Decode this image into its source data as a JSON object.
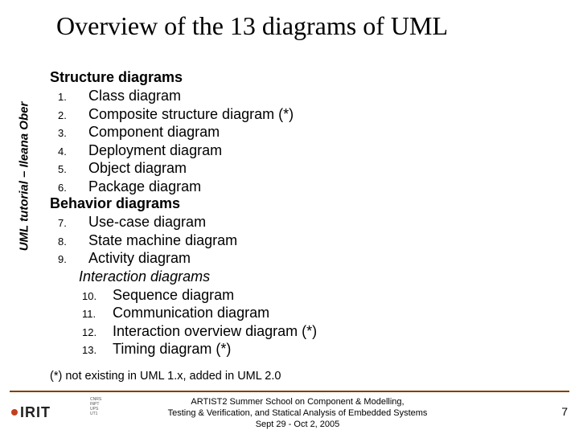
{
  "sidebar": "UML tutorial – Ileana Ober",
  "title": "Overview of the 13 diagrams of UML",
  "sections": {
    "structure": {
      "heading": "Structure diagrams",
      "items": [
        {
          "n": "1.",
          "label": "Class diagram"
        },
        {
          "n": "2.",
          "label": "Composite structure diagram (*)"
        },
        {
          "n": "3.",
          "label": "Component diagram"
        },
        {
          "n": "4.",
          "label": "Deployment diagram"
        },
        {
          "n": "5.",
          "label": "Object diagram"
        },
        {
          "n": "6.",
          "label": "Package diagram"
        }
      ]
    },
    "behavior": {
      "heading": "Behavior diagrams",
      "items": [
        {
          "n": "7.",
          "label": "Use-case diagram"
        },
        {
          "n": "8.",
          "label": "State machine diagram"
        },
        {
          "n": "9.",
          "label": "Activity diagram"
        }
      ]
    },
    "interaction": {
      "heading": "Interaction diagrams",
      "items": [
        {
          "n": "10.",
          "label": "Sequence diagram"
        },
        {
          "n": "11.",
          "label": "Communication diagram"
        },
        {
          "n": "12.",
          "label": "Interaction overview diagram (*)"
        },
        {
          "n": "13.",
          "label": "Timing diagram (*)"
        }
      ]
    }
  },
  "footnote": "(*) not existing in UML 1.x, added in UML 2.0",
  "footer": {
    "logo_text": "IRIT",
    "minis": "CNRS\nINPT\nUPS\nUT1",
    "center_l1": "ARTIST2 Summer School on Component & Modelling,",
    "center_l2": "Testing & Verification, and Statical Analysis of Embedded Systems",
    "center_l3": "Sept 29 - Oct 2, 2005",
    "page": "7",
    "line_color": "#804000",
    "logo_dot_color": "#c04020"
  }
}
